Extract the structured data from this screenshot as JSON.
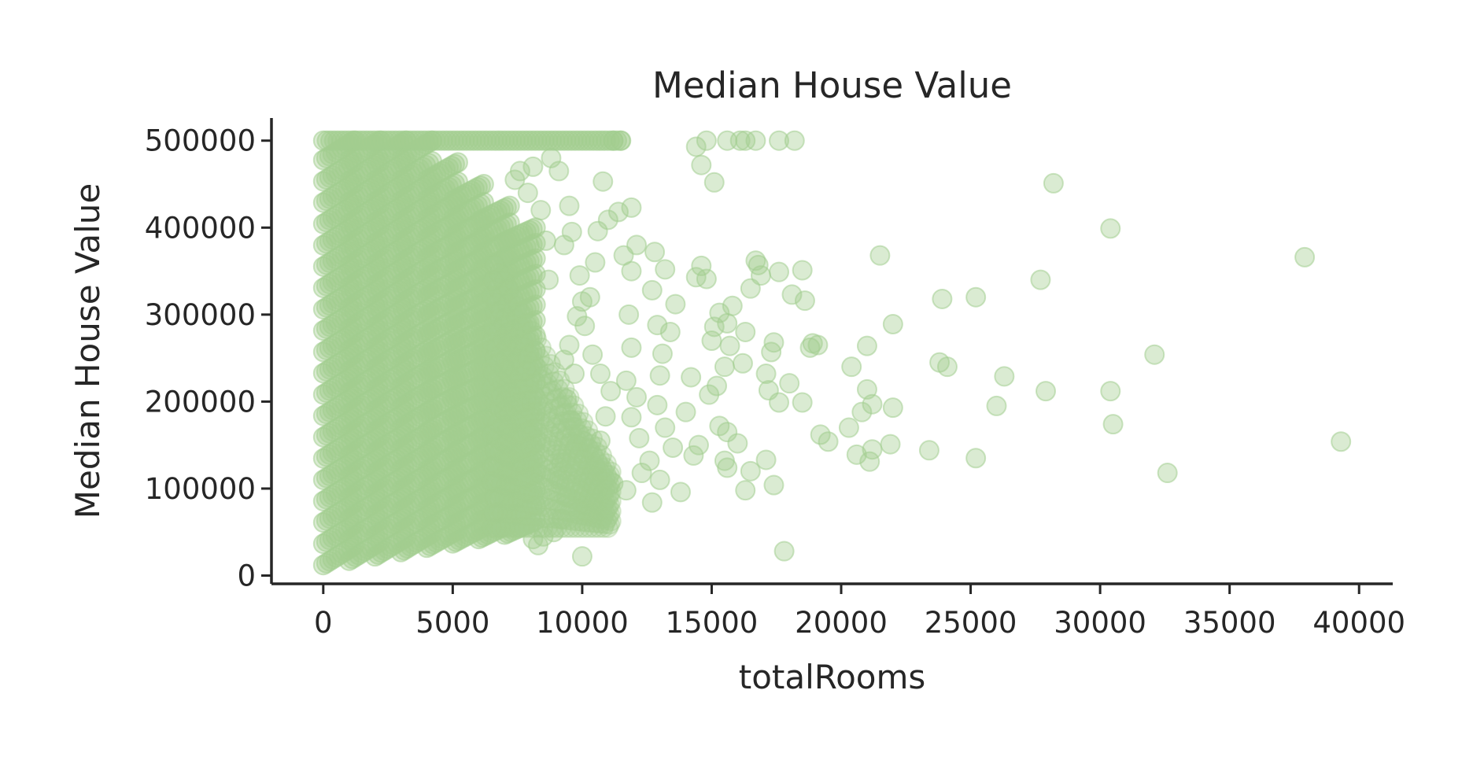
{
  "chart_data": {
    "type": "scatter",
    "title": "Median House Value",
    "xlabel": "totalRooms",
    "ylabel": "Median House Value",
    "xlim": [
      -2000,
      41300
    ],
    "ylim": [
      -9500,
      526000
    ],
    "xticks": [
      0,
      5000,
      10000,
      15000,
      20000,
      25000,
      30000,
      35000,
      40000
    ],
    "yticks": [
      0,
      100000,
      200000,
      300000,
      400000,
      500000
    ],
    "xtick_labels": [
      "0",
      "5000",
      "10000",
      "15000",
      "20000",
      "25000",
      "30000",
      "35000",
      "40000"
    ],
    "ytick_labels": [
      "0",
      "100000",
      "200000",
      "300000",
      "400000",
      "500000"
    ],
    "grid": false,
    "legend": "none",
    "series": [
      {
        "marker_color": "#a3cd8f",
        "marker_alpha": 0.4,
        "points": [
          [
            14400,
            493000
          ],
          [
            14800,
            500000
          ],
          [
            14600,
            472000
          ],
          [
            15100,
            452000
          ],
          [
            15600,
            500000
          ],
          [
            16100,
            500000
          ],
          [
            16300,
            500000
          ],
          [
            16700,
            500000
          ],
          [
            17600,
            500000
          ],
          [
            18200,
            500000
          ],
          [
            28200,
            451000
          ],
          [
            30400,
            399000
          ],
          [
            21500,
            368000
          ],
          [
            37900,
            366000
          ],
          [
            27700,
            340000
          ],
          [
            23900,
            318000
          ],
          [
            25200,
            320000
          ],
          [
            22000,
            289000
          ],
          [
            32100,
            254000
          ],
          [
            23800,
            245000
          ],
          [
            24100,
            240000
          ],
          [
            26300,
            229000
          ],
          [
            20400,
            240000
          ],
          [
            21000,
            264000
          ],
          [
            27900,
            212000
          ],
          [
            30400,
            212000
          ],
          [
            21000,
            214000
          ],
          [
            21200,
            197000
          ],
          [
            22000,
            193000
          ],
          [
            26000,
            195000
          ],
          [
            20800,
            188000
          ],
          [
            20300,
            170000
          ],
          [
            19200,
            162000
          ],
          [
            19500,
            154000
          ],
          [
            21900,
            151000
          ],
          [
            23400,
            144000
          ],
          [
            20600,
            139000
          ],
          [
            21200,
            145000
          ],
          [
            21100,
            131000
          ],
          [
            25200,
            135000
          ],
          [
            30500,
            174000
          ],
          [
            32600,
            118000
          ],
          [
            39300,
            154000
          ],
          [
            17800,
            28000
          ],
          [
            17300,
            257000
          ],
          [
            17400,
            268000
          ],
          [
            17100,
            232000
          ],
          [
            18000,
            221000
          ],
          [
            18800,
            262000
          ],
          [
            19100,
            265000
          ],
          [
            17600,
            199000
          ],
          [
            18500,
            199000
          ],
          [
            17200,
            213000
          ],
          [
            16300,
            280000
          ],
          [
            16500,
            330000
          ],
          [
            16800,
            357000
          ],
          [
            16900,
            345000
          ],
          [
            17600,
            349000
          ],
          [
            18100,
            323000
          ],
          [
            18500,
            351000
          ],
          [
            18600,
            316000
          ],
          [
            16700,
            362000
          ],
          [
            16200,
            244000
          ],
          [
            16500,
            120000
          ],
          [
            16300,
            98000
          ],
          [
            17100,
            133000
          ],
          [
            17400,
            104000
          ],
          [
            18900,
            267000
          ],
          [
            15300,
            302000
          ],
          [
            15800,
            310000
          ],
          [
            15100,
            286000
          ],
          [
            15700,
            264000
          ],
          [
            15500,
            240000
          ],
          [
            15200,
            218000
          ],
          [
            14900,
            208000
          ],
          [
            15000,
            270000
          ],
          [
            14600,
            356000
          ],
          [
            14400,
            343000
          ],
          [
            14800,
            341000
          ],
          [
            15600,
            290000
          ],
          [
            15300,
            172000
          ],
          [
            15600,
            165000
          ],
          [
            15500,
            132000
          ],
          [
            16000,
            152000
          ],
          [
            15600,
            124000
          ],
          [
            14300,
            138000
          ],
          [
            14500,
            150000
          ],
          [
            14000,
            188000
          ],
          [
            14200,
            228000
          ],
          [
            13400,
            280000
          ],
          [
            13600,
            312000
          ],
          [
            13200,
            352000
          ],
          [
            12800,
            372000
          ],
          [
            12700,
            328000
          ],
          [
            12900,
            288000
          ],
          [
            13100,
            255000
          ],
          [
            13000,
            230000
          ],
          [
            12900,
            196000
          ],
          [
            13200,
            170000
          ],
          [
            13500,
            147000
          ],
          [
            12600,
            132000
          ],
          [
            13000,
            110000
          ],
          [
            13800,
            96000
          ],
          [
            12700,
            84000
          ],
          [
            11800,
            300000
          ],
          [
            11900,
            262000
          ],
          [
            11700,
            224000
          ],
          [
            12100,
            205000
          ],
          [
            11900,
            182000
          ],
          [
            12200,
            158000
          ],
          [
            12300,
            118000
          ],
          [
            11700,
            98000
          ],
          [
            11600,
            368000
          ],
          [
            11900,
            350000
          ],
          [
            12100,
            380000
          ],
          [
            11900,
            423000
          ],
          [
            11400,
            418000
          ],
          [
            11000,
            409000
          ],
          [
            10800,
            453000
          ],
          [
            10600,
            396000
          ],
          [
            10500,
            360000
          ],
          [
            10300,
            320000
          ],
          [
            10100,
            287000
          ],
          [
            10400,
            254000
          ],
          [
            10700,
            232000
          ],
          [
            11100,
            212000
          ],
          [
            10900,
            183000
          ],
          [
            10700,
            155000
          ],
          [
            10500,
            125000
          ],
          [
            11200,
            106000
          ],
          [
            10300,
            70000
          ],
          [
            10100,
            80000
          ],
          [
            10000,
            22000
          ],
          [
            9500,
            425000
          ],
          [
            9100,
            465000
          ],
          [
            8800,
            480000
          ],
          [
            9600,
            395000
          ],
          [
            9300,
            380000
          ],
          [
            9900,
            345000
          ],
          [
            10000,
            315000
          ],
          [
            9800,
            298000
          ],
          [
            9500,
            265000
          ],
          [
            9300,
            248000
          ],
          [
            9700,
            232000
          ],
          [
            9400,
            203000
          ],
          [
            9600,
            178000
          ],
          [
            9800,
            150000
          ],
          [
            9200,
            130000
          ],
          [
            9100,
            110000
          ],
          [
            9400,
            90000
          ],
          [
            9200,
            65000
          ],
          [
            8900,
            50000
          ],
          [
            8500,
            45000
          ],
          [
            8100,
            42000
          ],
          [
            8300,
            35000
          ],
          [
            8600,
            385000
          ],
          [
            8700,
            340000
          ],
          [
            8400,
            420000
          ],
          [
            8100,
            470000
          ],
          [
            7900,
            440000
          ],
          [
            7600,
            465000
          ],
          [
            7400,
            455000
          ],
          [
            11200,
            500000
          ],
          [
            11500,
            500000
          ]
        ]
      }
    ]
  }
}
